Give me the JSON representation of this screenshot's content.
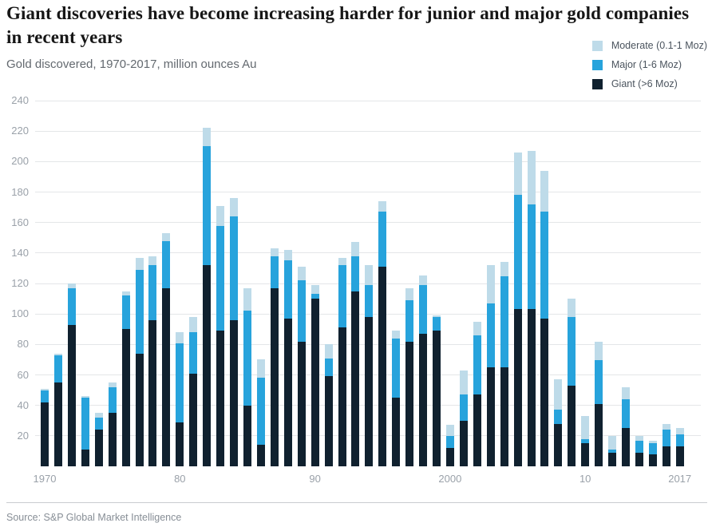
{
  "source": {
    "label": "Source: S&P Global Market Intelligence"
  },
  "chart_data": {
    "type": "bar",
    "stacked": true,
    "title": "Giant discoveries have become increasing harder for junior and major gold companies in recent years",
    "subtitle": "Gold discovered, 1970-2017, million ounces Au",
    "unit": "million ounces Au",
    "grid": "horizontal",
    "legend_position": "top-right",
    "ylim": [
      0,
      240
    ],
    "yticks": [
      20,
      40,
      60,
      80,
      100,
      120,
      140,
      160,
      180,
      200,
      220,
      240
    ],
    "xticks": [
      {
        "index": 0,
        "label": "1970"
      },
      {
        "index": 10,
        "label": "80"
      },
      {
        "index": 20,
        "label": "90"
      },
      {
        "index": 30,
        "label": "2000"
      },
      {
        "index": 40,
        "label": "10"
      },
      {
        "index": 47,
        "label": "2017"
      }
    ],
    "categories": [
      1970,
      1971,
      1972,
      1973,
      1974,
      1975,
      1976,
      1977,
      1978,
      1979,
      1980,
      1981,
      1982,
      1983,
      1984,
      1985,
      1986,
      1987,
      1988,
      1989,
      1990,
      1991,
      1992,
      1993,
      1994,
      1995,
      1996,
      1997,
      1998,
      1999,
      2000,
      2001,
      2002,
      2003,
      2004,
      2005,
      2006,
      2007,
      2008,
      2009,
      2010,
      2011,
      2012,
      2013,
      2014,
      2015,
      2016,
      2017
    ],
    "series": [
      {
        "name": "Giant (>6 Moz)",
        "color": "#10212f",
        "values": [
          42,
          55,
          93,
          11,
          24,
          35,
          90,
          74,
          96,
          117,
          29,
          61,
          132,
          89,
          96,
          40,
          14,
          117,
          97,
          82,
          110,
          59,
          91,
          115,
          98,
          131,
          45,
          82,
          87,
          89,
          12,
          30,
          47,
          65,
          65,
          103,
          103,
          97,
          28,
          53,
          15,
          41,
          9,
          25,
          9,
          8,
          13,
          13
        ]
      },
      {
        "name": "Major (1-6 Moz)",
        "color": "#27a3dc",
        "values": [
          8,
          18,
          24,
          34,
          8,
          17,
          22,
          55,
          36,
          31,
          52,
          27,
          78,
          69,
          68,
          62,
          44,
          21,
          38,
          40,
          3,
          12,
          41,
          23,
          21,
          36,
          39,
          27,
          32,
          9,
          8,
          17,
          39,
          42,
          60,
          75,
          69,
          70,
          9,
          45,
          3,
          29,
          2,
          19,
          8,
          7,
          11,
          8
        ]
      },
      {
        "name": "Moderate (0.1-1 Moz)",
        "color": "#bedbe9",
        "values": [
          1,
          1,
          3,
          1,
          3,
          3,
          3,
          8,
          6,
          5,
          7,
          10,
          12,
          13,
          12,
          15,
          12,
          5,
          7,
          9,
          6,
          9,
          5,
          9,
          13,
          7,
          5,
          8,
          6,
          1,
          7,
          16,
          9,
          25,
          9,
          28,
          35,
          27,
          20,
          12,
          15,
          12,
          9,
          8,
          3,
          2,
          4,
          4
        ]
      }
    ],
    "legend": [
      {
        "label": "Moderate (0.1-1 Moz)",
        "color": "#bedbe9"
      },
      {
        "label": "Major (1-6 Moz)",
        "color": "#27a3dc"
      },
      {
        "label": "Giant (>6 Moz)",
        "color": "#10212f"
      }
    ]
  }
}
